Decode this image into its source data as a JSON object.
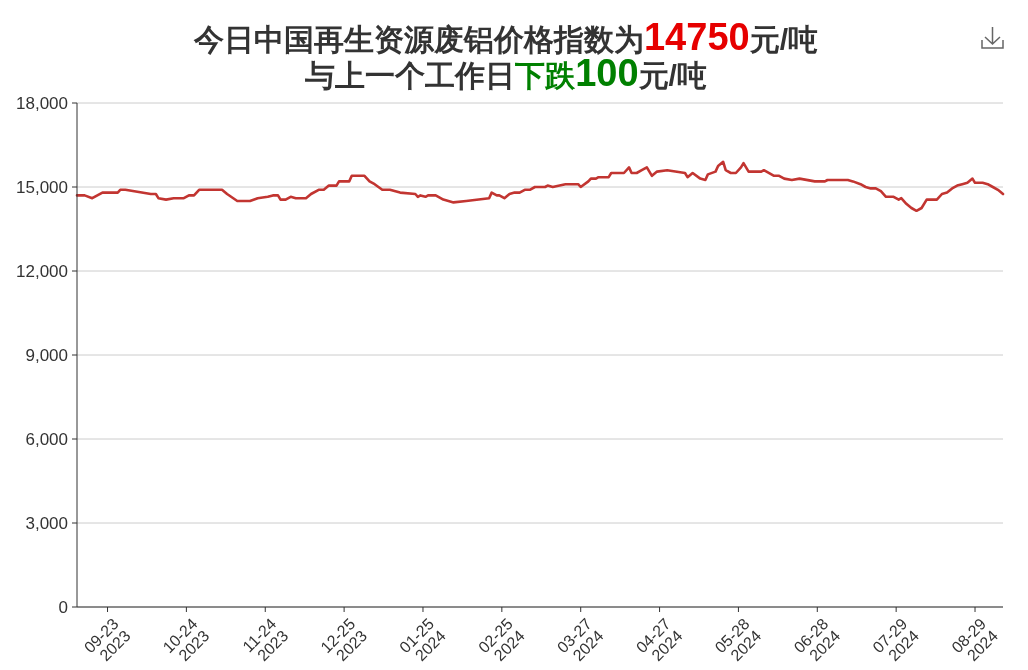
{
  "chart_data": {
    "type": "line",
    "title": "今日中国再生资源废铝价格指数为14750元/吨",
    "subtitle": "与上一个工作日下跌100元/吨",
    "x": [
      "2023-09-11",
      "2023-09-14",
      "2023-09-17",
      "2023-09-21",
      "2023-09-27",
      "2023-09-28",
      "2023-09-30",
      "2023-10-10",
      "2023-10-12",
      "2023-10-13",
      "2023-10-16",
      "2023-10-19",
      "2023-10-23",
      "2023-10-25",
      "2023-10-27",
      "2023-10-29",
      "2023-11-07",
      "2023-11-09",
      "2023-11-13",
      "2023-11-18",
      "2023-11-21",
      "2023-11-25",
      "2023-11-27",
      "2023-11-29",
      "2023-11-30",
      "2023-12-02",
      "2023-12-04",
      "2023-12-06",
      "2023-12-10",
      "2023-12-12",
      "2023-12-15",
      "2023-12-17",
      "2023-12-19",
      "2023-12-22",
      "2023-12-23",
      "2023-12-27",
      "2023-12-28",
      "2024-01-02",
      "2024-01-04",
      "2024-01-06",
      "2024-01-09",
      "2024-01-12",
      "2024-01-16",
      "2024-01-22",
      "2024-01-23",
      "2024-01-24",
      "2024-01-26",
      "2024-01-27",
      "2024-01-30",
      "2024-02-02",
      "2024-02-06",
      "2024-02-11",
      "2024-02-20",
      "2024-02-21",
      "2024-02-23",
      "2024-02-24",
      "2024-02-26",
      "2024-02-28",
      "2024-03-01",
      "2024-03-03",
      "2024-03-05",
      "2024-03-07",
      "2024-03-09",
      "2024-03-13",
      "2024-03-14",
      "2024-03-16",
      "2024-03-21",
      "2024-03-26",
      "2024-03-27",
      "2024-03-30",
      "2024-03-31",
      "2024-04-02",
      "2024-04-03",
      "2024-04-07",
      "2024-04-08",
      "2024-04-13",
      "2024-04-15",
      "2024-04-16",
      "2024-04-18",
      "2024-04-20",
      "2024-04-22",
      "2024-04-24",
      "2024-04-26",
      "2024-04-30",
      "2024-05-07",
      "2024-05-08",
      "2024-05-10",
      "2024-05-13",
      "2024-05-15",
      "2024-05-16",
      "2024-05-19",
      "2024-05-20",
      "2024-05-22",
      "2024-05-23",
      "2024-05-25",
      "2024-05-27",
      "2024-05-29",
      "2024-05-30",
      "2024-06-01",
      "2024-06-06",
      "2024-06-07",
      "2024-06-11",
      "2024-06-13",
      "2024-06-15",
      "2024-06-18",
      "2024-06-21",
      "2024-06-27",
      "2024-07-01",
      "2024-07-02",
      "2024-07-10",
      "2024-07-12",
      "2024-07-15",
      "2024-07-17",
      "2024-07-19",
      "2024-07-21",
      "2024-07-23",
      "2024-07-25",
      "2024-07-28",
      "2024-07-30",
      "2024-07-31",
      "2024-08-02",
      "2024-08-04",
      "2024-08-06",
      "2024-08-08",
      "2024-08-10",
      "2024-08-14",
      "2024-08-16",
      "2024-08-18",
      "2024-08-20",
      "2024-08-22",
      "2024-08-24",
      "2024-08-26",
      "2024-08-28",
      "2024-08-29",
      "2024-09-01",
      "2024-09-03",
      "2024-09-05",
      "2024-09-07",
      "2024-09-09"
    ],
    "series": [
      {
        "color": "#c23531",
        "values": [
          14700,
          14700,
          14600,
          14800,
          14800,
          14900,
          14900,
          14750,
          14750,
          14600,
          14550,
          14600,
          14600,
          14700,
          14700,
          14900,
          14900,
          14750,
          14500,
          14500,
          14600,
          14650,
          14700,
          14700,
          14550,
          14550,
          14650,
          14600,
          14600,
          14750,
          14900,
          14900,
          15050,
          15050,
          15200,
          15200,
          15400,
          15400,
          15200,
          15100,
          14900,
          14900,
          14800,
          14750,
          14650,
          14700,
          14650,
          14700,
          14700,
          14550,
          14450,
          14500,
          14600,
          14800,
          14700,
          14700,
          14600,
          14750,
          14800,
          14800,
          14900,
          14900,
          15000,
          15000,
          15050,
          15000,
          15100,
          15100,
          15000,
          15200,
          15300,
          15300,
          15350,
          15350,
          15500,
          15500,
          15700,
          15500,
          15500,
          15600,
          15700,
          15400,
          15550,
          15600,
          15500,
          15350,
          15500,
          15300,
          15250,
          15450,
          15550,
          15750,
          15900,
          15600,
          15500,
          15500,
          15700,
          15850,
          15550,
          15550,
          15600,
          15400,
          15400,
          15300,
          15250,
          15300,
          15200,
          15200,
          15250,
          15250,
          15200,
          15100,
          15000,
          14950,
          14950,
          14850,
          14650,
          14650,
          14550,
          14600,
          14400,
          14250,
          14150,
          14250,
          14550,
          14550,
          14750,
          14800,
          14950,
          15050,
          15100,
          15150,
          15300,
          15150,
          15150,
          15100,
          15000,
          14900,
          14750
        ]
      }
    ],
    "xlim": [
      "2023-09-11",
      "2024-09-09"
    ],
    "xticks": [
      {
        "value": "2023-09-23",
        "label": "09-23\n2023"
      },
      {
        "value": "2023-10-24",
        "label": "10-24\n2023"
      },
      {
        "value": "2023-11-24",
        "label": "11-24\n2023"
      },
      {
        "value": "2023-12-25",
        "label": "12-25\n2023"
      },
      {
        "value": "2024-01-25",
        "label": "01-25\n2024"
      },
      {
        "value": "2024-02-25",
        "label": "02-25\n2024"
      },
      {
        "value": "2024-03-27",
        "label": "03-27\n2024"
      },
      {
        "value": "2024-04-27",
        "label": "04-27\n2024"
      },
      {
        "value": "2024-05-28",
        "label": "05-28\n2024"
      },
      {
        "value": "2024-06-28",
        "label": "06-28\n2024"
      },
      {
        "value": "2024-07-29",
        "label": "07-29\n2024"
      },
      {
        "value": "2024-08-29",
        "label": "08-29\n2024"
      }
    ],
    "ylim": [
      0,
      18000
    ],
    "yticks": [
      0,
      {
        "value": 3000,
        "label": "3,000"
      },
      {
        "value": 6000,
        "label": "6,000"
      },
      {
        "value": 9000,
        "label": "9,000"
      },
      {
        "value": 12000,
        "label": "12,000"
      },
      {
        "value": 15000,
        "label": "15,000"
      },
      {
        "value": 18000,
        "label": "18,000"
      }
    ],
    "grid": "y"
  }
}
